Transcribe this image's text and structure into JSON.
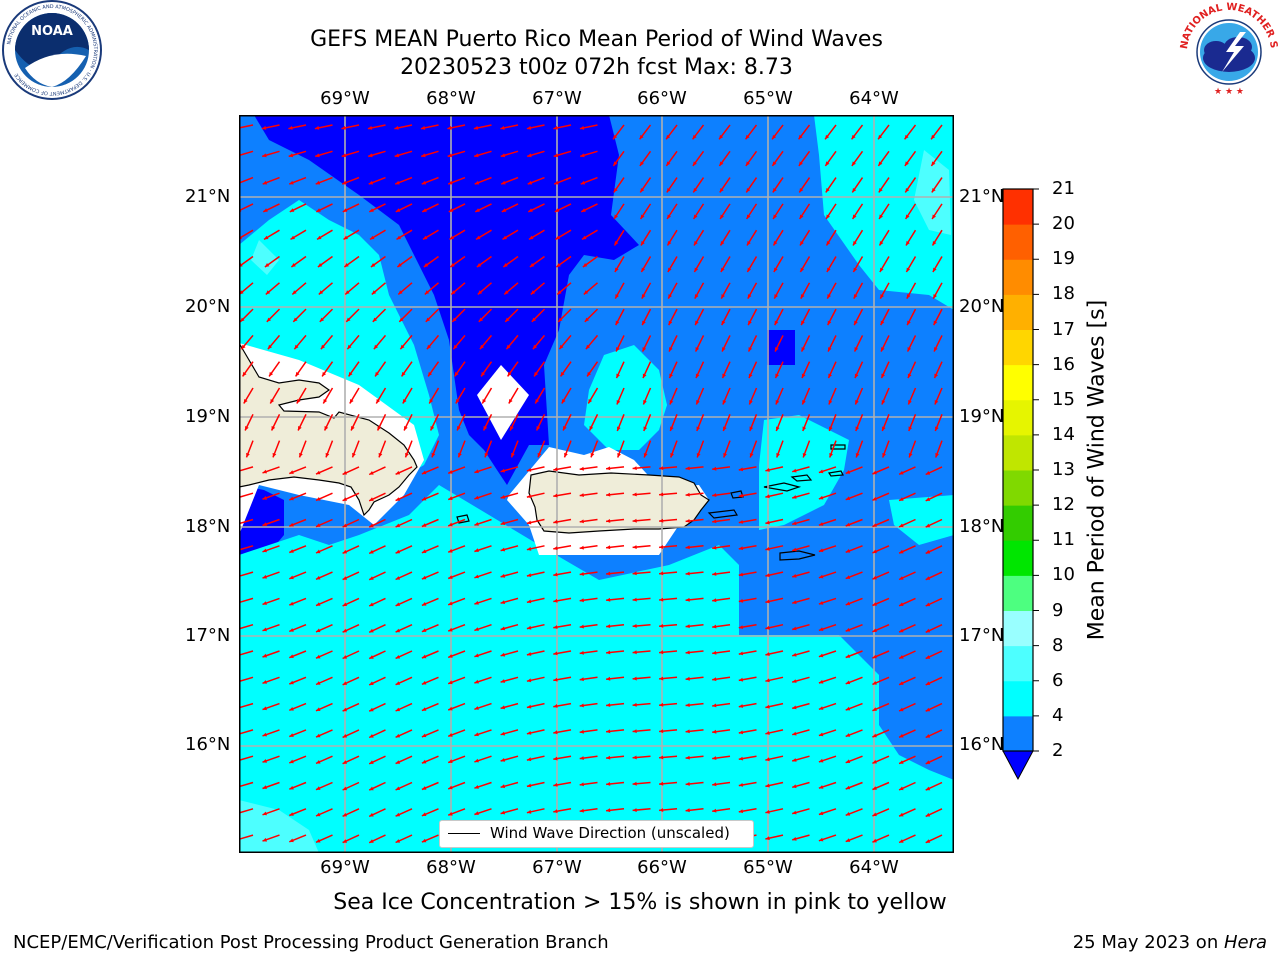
{
  "header": {
    "title_line1": "GEFS MEAN Puerto Rico Mean Period of Wind Waves",
    "title_line2": "20230523 t00z 072h fcst   Max: 8.73"
  },
  "axes": {
    "lon_labels": [
      "69°W",
      "68°W",
      "67°W",
      "66°W",
      "65°W",
      "64°W"
    ],
    "lat_labels": [
      "21°N",
      "20°N",
      "19°N",
      "18°N",
      "17°N",
      "16°N"
    ],
    "lon_range": [
      -69.99,
      -63.25
    ],
    "lat_range": [
      15.0,
      21.75
    ]
  },
  "colorbar": {
    "title": "Mean Period of Wind Waves [s]",
    "ticks": [
      "2",
      "4",
      "6",
      "8",
      "9",
      "10",
      "11",
      "12",
      "13",
      "14",
      "15",
      "16",
      "17",
      "18",
      "19",
      "20",
      "21"
    ],
    "levels": [
      2,
      4,
      6,
      8,
      9,
      10,
      11,
      12,
      13,
      14,
      15,
      16,
      17,
      18,
      19,
      20,
      21
    ],
    "colors": [
      "#0d80ff",
      "#00ffff",
      "#4dffff",
      "#99ffff",
      "#4dff80",
      "#00e600",
      "#33cc00",
      "#80d900",
      "#c0e600",
      "#e6f500",
      "#ffff00",
      "#ffd600",
      "#ffb000",
      "#ff8c00",
      "#ff6000",
      "#ff3000"
    ],
    "under_color": "#0000ff"
  },
  "map": {
    "land_color": "#efedd9",
    "arrow_color": "#ff0000",
    "arrow_direction": "toward west-southwest (east trade winds)"
  },
  "legend": {
    "label": "Wind Wave Direction (unscaled)"
  },
  "footer": {
    "note": "Sea Ice Concentration > 15% is shown in pink to yellow",
    "left": "NCEP/EMC/Verification Post Processing Product Generation Branch",
    "right_date": "25 May 2023 on ",
    "right_machine": "Hera"
  },
  "logos": {
    "left": "NOAA",
    "left_ring": "NATIONAL OCEANIC AND ATMOSPHERIC ADMINISTRATION · U.S. DEPARTMENT OF COMMERCE",
    "right": "NATIONAL WEATHER SERVICE"
  }
}
